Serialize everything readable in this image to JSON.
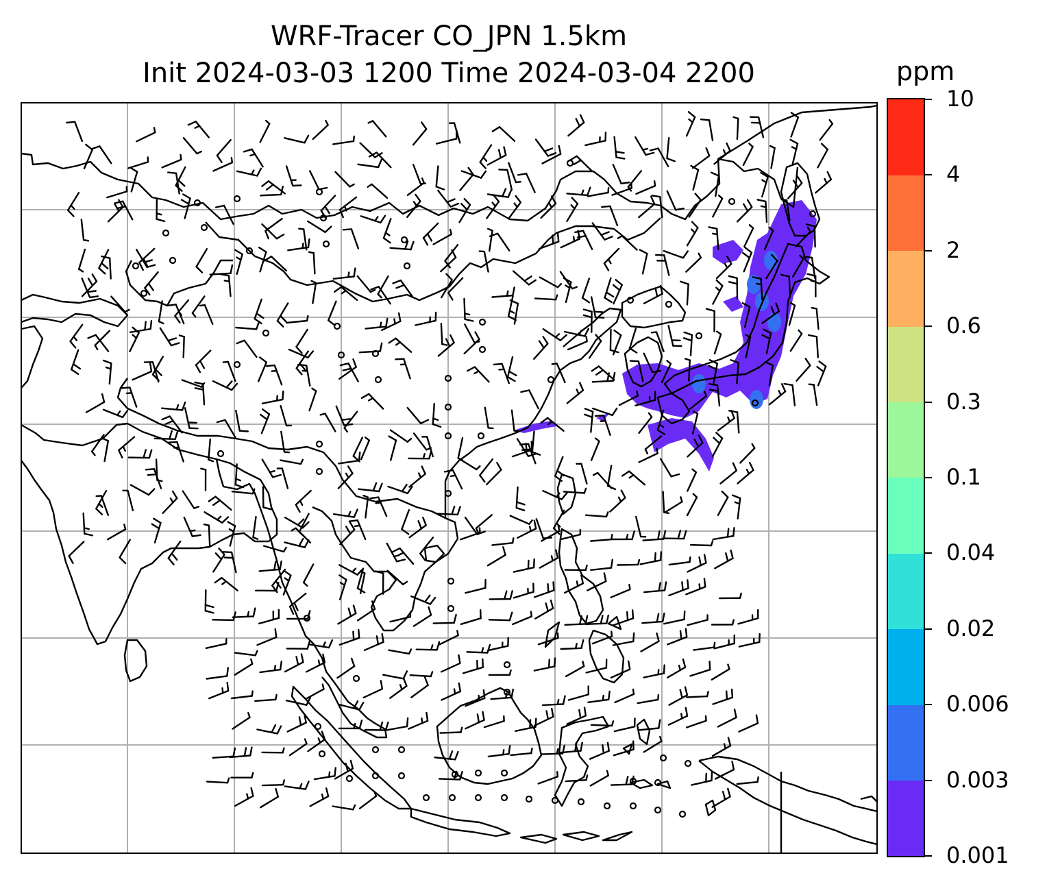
{
  "title": {
    "line1": "WRF-Tracer CO_JPN 1.5km",
    "line2": "Init 2024-03-03 1200 Time 2024-03-04 2200"
  },
  "colorbar": {
    "unit": "ppm",
    "levels": [
      "0.001",
      "0.003",
      "0.006",
      "0.02",
      "0.04",
      "0.1",
      "0.3",
      "0.6",
      "2",
      "4",
      "10"
    ],
    "colors": [
      "#6a2cf5",
      "#3371f2",
      "#00b0ec",
      "#31e0d8",
      "#6affbc",
      "#9cf79a",
      "#cfe385",
      "#ffaf60",
      "#ff7138",
      "#ff2a16"
    ]
  },
  "map": {
    "region": "East / Southeast Asia",
    "gridlines": true,
    "coastline_color": "#000000",
    "grid_color": "#b0b0b0",
    "plume_color": "#6a2cf5"
  }
}
